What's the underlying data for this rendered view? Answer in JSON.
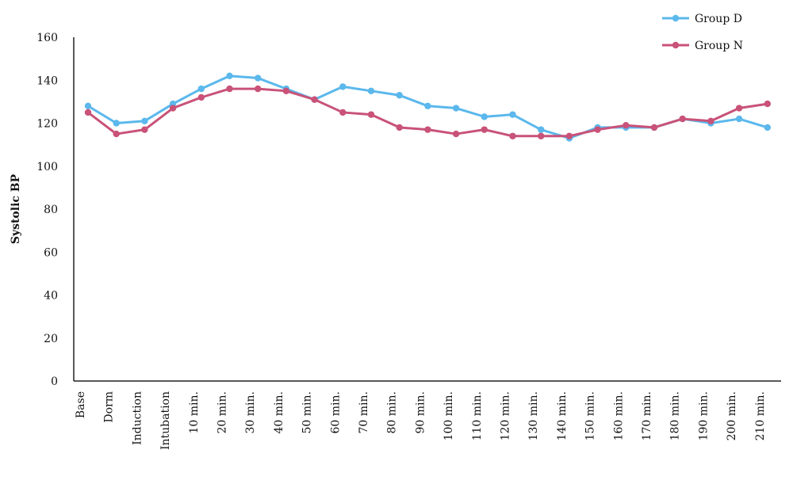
{
  "chart_data": {
    "type": "line",
    "title": "",
    "xlabel": "",
    "ylabel": "Systolic BP",
    "ylim": [
      0,
      160
    ],
    "yticks": [
      0,
      20,
      40,
      60,
      80,
      100,
      120,
      140,
      160
    ],
    "grid": false,
    "legend_position": "top-right",
    "categories": [
      "Base",
      "Dorm",
      "Induction",
      "Intubation",
      "10 min.",
      "20 min.",
      "30 min.",
      "40 min.",
      "50 min.",
      "60 min.",
      "70 min.",
      "80 min.",
      "90 min.",
      "100 min.",
      "110 min.",
      "120 min.",
      "130 min.",
      "140 min.",
      "150 min.",
      "160 min.",
      "170 min.",
      "180 min.",
      "190 min.",
      "200 min.",
      "210 min."
    ],
    "series": [
      {
        "name": "Group D",
        "color": "#5bb8ec",
        "values": [
          128,
          120,
          121,
          129,
          136,
          142,
          141,
          136,
          131,
          137,
          135,
          133,
          128,
          127,
          123,
          124,
          117,
          113,
          118,
          118,
          118,
          122,
          120,
          122,
          118
        ]
      },
      {
        "name": "Group N",
        "color": "#c95278",
        "values": [
          125,
          115,
          117,
          127,
          132,
          136,
          136,
          135,
          131,
          125,
          124,
          118,
          117,
          115,
          117,
          114,
          114,
          114,
          117,
          119,
          118,
          122,
          121,
          127,
          129
        ]
      }
    ]
  }
}
